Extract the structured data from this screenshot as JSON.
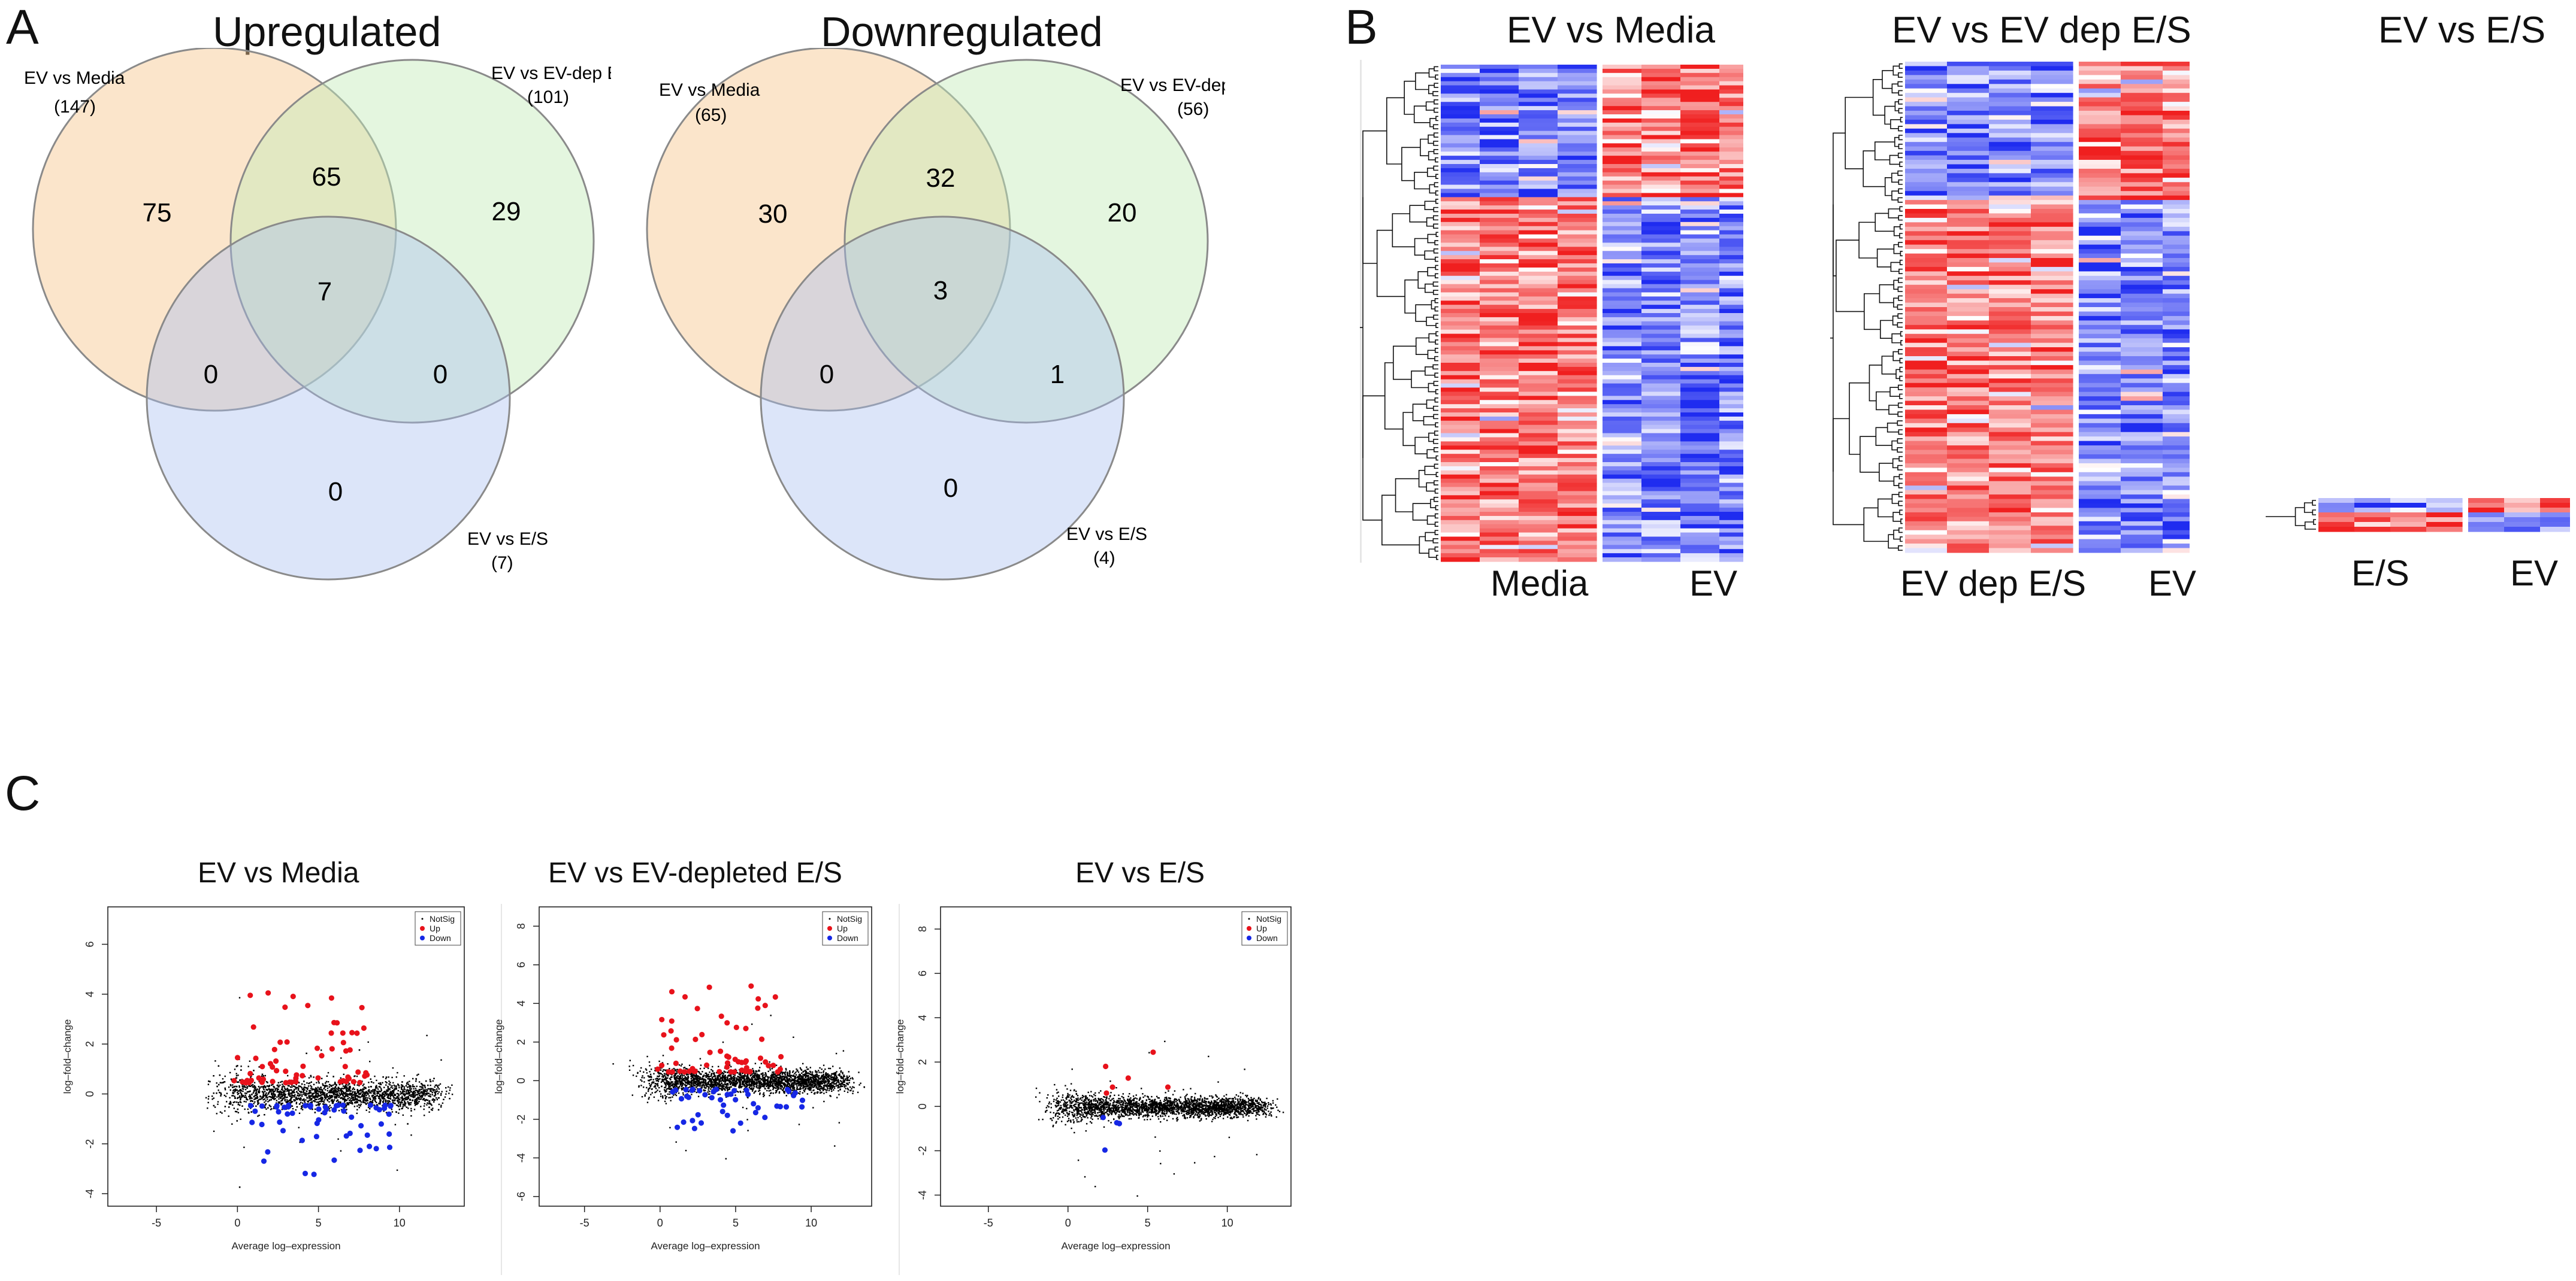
{
  "panel_a": {
    "letter": "A",
    "upregulated": {
      "title": "Upregulated",
      "sets": [
        {
          "label": "EV vs Media",
          "count": "(147)",
          "color": "#f6c58c"
        },
        {
          "label": "EV vs EV-dep E/S",
          "count": "(101)",
          "color": "#c4ecb9"
        },
        {
          "label": "EV vs E/S",
          "count": "(7)",
          "color": "#a7bdf1"
        }
      ],
      "regions": {
        "a_only": "75",
        "ab": "65",
        "b_only": "29",
        "abc": "7",
        "ac": "0",
        "bc": "0",
        "c_only": "0"
      }
    },
    "downregulated": {
      "title": "Downregulated",
      "sets": [
        {
          "label": "EV vs Media",
          "count": "(65)",
          "color": "#f6c58c"
        },
        {
          "label": "EV vs EV-dep E/S",
          "count": "(56)",
          "color": "#c4ecb9"
        },
        {
          "label": "EV vs E/S",
          "count": "(4)",
          "color": "#a7bdf1"
        }
      ],
      "regions": {
        "a_only": "30",
        "ab": "32",
        "b_only": "20",
        "abc": "3",
        "ac": "0",
        "bc": "1",
        "c_only": "0"
      }
    }
  },
  "panel_b": {
    "letter": "B",
    "heatmaps": [
      {
        "title": "EV vs Media",
        "group_labels": [
          "Media",
          "EV"
        ],
        "rows": 120
      },
      {
        "title": "EV vs EV dep E/S",
        "group_labels": [
          "EV dep E/S",
          "EV"
        ],
        "rows": 110
      },
      {
        "title": "EV vs E/S",
        "group_labels": [
          "E/S",
          "EV"
        ],
        "rows": 7
      }
    ],
    "colors": {
      "low": "#1f2cf0",
      "mid": "#ffffff",
      "high": "#f01f1f"
    }
  },
  "panel_c": {
    "letter": "C",
    "legend": {
      "notsig": "NotSig",
      "up": "Up",
      "down": "Down"
    },
    "colors": {
      "notsig": "#000000",
      "up": "#e8121b",
      "down": "#1627e5"
    },
    "xlabel": "Average log–expression",
    "ylabel": "log–fold–change",
    "plots": [
      {
        "title": "EV vs Media",
        "xticks": [
          "-5",
          "0",
          "5",
          "10"
        ],
        "yticks": [
          "-4",
          "-2",
          "0",
          "2",
          "4",
          "6"
        ],
        "xlim": [
          -8,
          14
        ],
        "ylim": [
          -4.5,
          7.5
        ],
        "n_up": 65,
        "n_down": 55,
        "up_max": 4.2,
        "down_min": -3.3
      },
      {
        "title": "EV vs EV-depleted E/S",
        "xticks": [
          "-5",
          "0",
          "5",
          "10"
        ],
        "yticks": [
          "-6",
          "-4",
          "-2",
          "0",
          "2",
          "4",
          "6",
          "8"
        ],
        "xlim": [
          -8,
          14
        ],
        "ylim": [
          -6.5,
          9
        ],
        "n_up": 60,
        "n_down": 45,
        "up_max": 5.0,
        "down_min": -2.6
      },
      {
        "title": "EV vs E/S",
        "xticks": [
          "-5",
          "0",
          "5",
          "10"
        ],
        "yticks": [
          "-4",
          "-2",
          "0",
          "2",
          "4",
          "6",
          "8"
        ],
        "xlim": [
          -8,
          14
        ],
        "ylim": [
          -4.5,
          9
        ],
        "n_up": 6,
        "n_down": 4,
        "up_max": 2.5,
        "down_min": -2.3
      }
    ]
  }
}
